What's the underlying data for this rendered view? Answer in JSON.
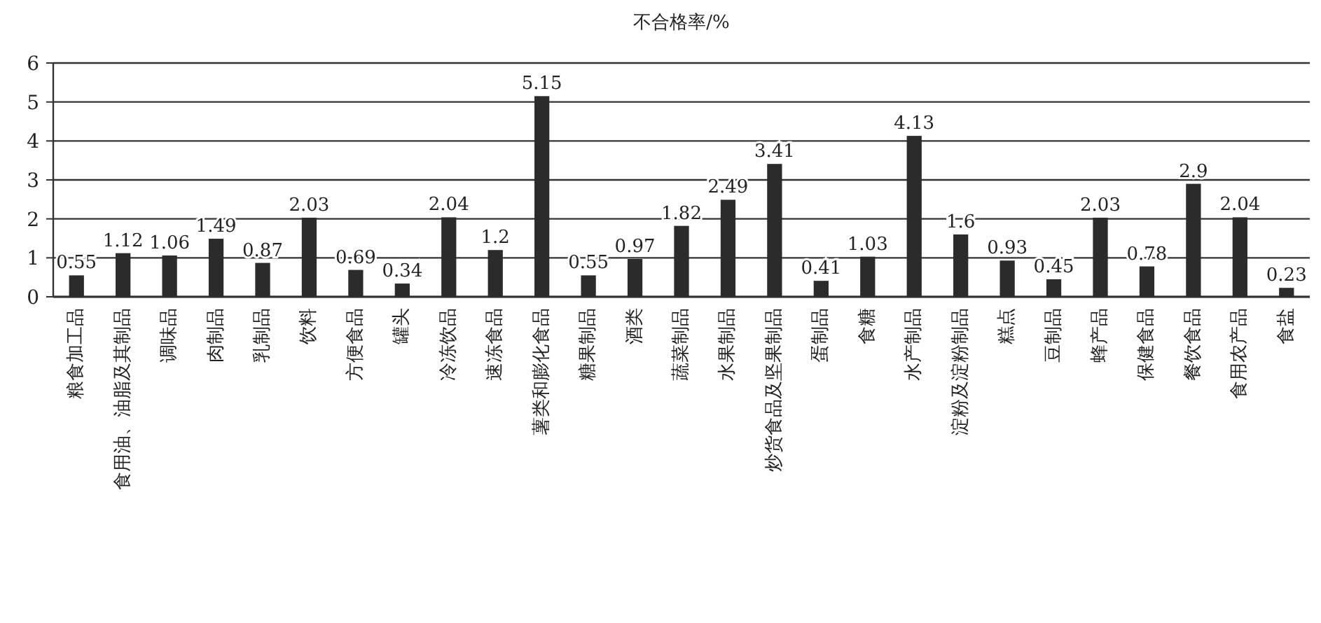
{
  "chart_data": {
    "type": "bar",
    "title": "不合格率/%",
    "categories": [
      "粮食加工品",
      "食用油、油脂及其制品",
      "调味品",
      "肉制品",
      "乳制品",
      "饮料",
      "方便食品",
      "罐头",
      "冷冻饮品",
      "速冻食品",
      "薯类和膨化食品",
      "糖果制品",
      "酒类",
      "蔬菜制品",
      "水果制品",
      "炒货食品及坚果制品",
      "蛋制品",
      "食糖",
      "水产制品",
      "淀粉及淀粉制品",
      "糕点",
      "豆制品",
      "蜂产品",
      "保健食品",
      "餐饮食品",
      "食用农产品",
      "食盐"
    ],
    "values": [
      0.55,
      1.12,
      1.06,
      1.49,
      0.87,
      2.03,
      0.69,
      0.34,
      2.04,
      1.2,
      5.15,
      0.55,
      0.97,
      1.82,
      2.49,
      3.41,
      0.41,
      1.03,
      4.13,
      1.6,
      0.93,
      0.45,
      2.03,
      0.78,
      2.9,
      2.04,
      0.23
    ],
    "color": "#2b2b2b",
    "ylim": [
      0,
      6
    ],
    "yticks": [
      0,
      1,
      2,
      3,
      4,
      5,
      6
    ],
    "grid": "y",
    "data_labels": true
  }
}
